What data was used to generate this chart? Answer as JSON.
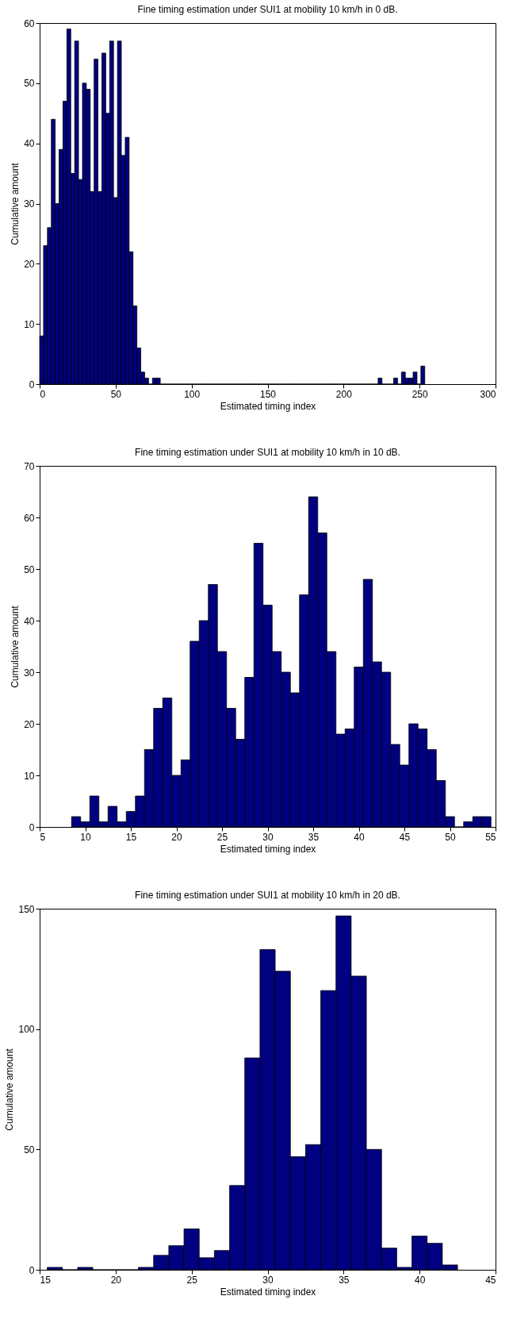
{
  "chart_data": [
    {
      "type": "histogram",
      "title": "Fine timing estimation under SUI1 at mobility 10 km/h in 0 dB.",
      "xlabel": "Estimated timing index",
      "ylabel": "Cumulative amount",
      "color": "#000080",
      "bins": [
        0,
        2.56,
        5.12,
        7.68,
        10.24,
        12.8,
        15.36,
        17.92,
        20.48,
        23.04,
        25.6,
        28.16,
        30.72,
        33.28,
        35.84,
        38.4,
        40.96,
        43.52,
        46.08,
        48.64,
        51.2,
        53.76,
        56.32,
        58.88,
        61.44,
        64,
        66.56,
        69.12,
        71.68,
        74.24,
        76.8,
        79.36,
        81.92,
        84.48,
        87.04,
        89.6,
        92.16,
        94.72,
        97.28,
        99.84,
        102.4,
        104.96,
        107.52,
        110.08,
        112.64,
        115.2,
        117.76,
        120.32,
        122.88,
        125.44,
        128,
        130.56,
        133.12,
        135.68,
        138.24,
        140.8,
        143.36,
        145.92,
        148.48,
        151.04,
        153.6,
        156.16,
        158.72,
        161.28,
        163.84,
        166.4,
        168.96,
        171.52,
        174.08,
        176.64,
        179.2,
        181.76,
        184.32,
        186.88,
        189.44,
        192,
        194.56,
        197.12,
        199.68,
        202.24,
        204.8,
        207.36,
        209.92,
        212.48,
        215.04,
        217.6,
        220.16,
        222.72,
        225.28,
        227.84,
        230.4,
        232.96,
        235.52,
        238.08,
        240.64,
        243.2,
        245.76,
        248.32,
        250.88,
        253.44
      ],
      "values": [
        8,
        23,
        26,
        44,
        30,
        39,
        47,
        59,
        35,
        57,
        34,
        50,
        49,
        32,
        54,
        32,
        55,
        45,
        57,
        31,
        57,
        38,
        41,
        22,
        13,
        6,
        2,
        1,
        0,
        1,
        1,
        0,
        0,
        0,
        0,
        0,
        0,
        0,
        0,
        0,
        0,
        0,
        0,
        0,
        0,
        0,
        0,
        0,
        0,
        0,
        0,
        0,
        0,
        0,
        0,
        0,
        0,
        0,
        0,
        0,
        0,
        0,
        0,
        0,
        0,
        0,
        0,
        0,
        0,
        0,
        0,
        0,
        0,
        0,
        0,
        0,
        0,
        0,
        0,
        0,
        0,
        0,
        0,
        0,
        0,
        0,
        0,
        1,
        0,
        0,
        0,
        1,
        0,
        2,
        1,
        1,
        2,
        0,
        3
      ],
      "xlim": [
        0,
        300
      ],
      "xticks": [
        0,
        50,
        100,
        150,
        200,
        250,
        300
      ],
      "ylim": [
        0,
        60
      ],
      "yticks": [
        0,
        10,
        20,
        30,
        40,
        50,
        60
      ]
    },
    {
      "type": "histogram",
      "title": "Fine timing estimation under SUI1 at mobility 10 km/h in 10 dB.",
      "xlabel": "Estimated timing index",
      "ylabel": "Cumulative amount",
      "color": "#000080",
      "bins": [
        8.5,
        9.5,
        10.5,
        11.5,
        12.5,
        13.5,
        14.5,
        15.5,
        16.5,
        17.5,
        18.5,
        19.5,
        20.5,
        21.5,
        22.5,
        23.5,
        24.5,
        25.5,
        26.5,
        27.5,
        28.5,
        29.5,
        30.5,
        31.5,
        32.5,
        33.5,
        34.5,
        35.5,
        36.5,
        37.5,
        38.5,
        39.5,
        40.5,
        41.5,
        42.5,
        43.5,
        44.5,
        45.5,
        46.5,
        47.5,
        48.5,
        49.5,
        50.5,
        51.5,
        52.5,
        53.5,
        54.5
      ],
      "values": [
        2,
        1,
        6,
        1,
        4,
        1,
        3,
        6,
        15,
        23,
        25,
        10,
        13,
        36,
        40,
        47,
        34,
        23,
        17,
        29,
        55,
        43,
        34,
        30,
        26,
        45,
        64,
        57,
        34,
        18,
        19,
        31,
        48,
        32,
        30,
        16,
        12,
        20,
        19,
        15,
        9,
        2,
        0,
        1,
        2,
        2
      ],
      "xlim": [
        5,
        55
      ],
      "xticks": [
        5,
        10,
        15,
        20,
        25,
        30,
        35,
        40,
        45,
        50,
        55
      ],
      "ylim": [
        0,
        70
      ],
      "yticks": [
        0,
        10,
        20,
        30,
        40,
        50,
        60,
        70
      ]
    },
    {
      "type": "histogram",
      "title": "Fine timing estimation under SUI1 at mobility 10 km/h in 20 dB.",
      "xlabel": "Estimated timing index",
      "ylabel": "Cumulative amount",
      "color": "#000080",
      "bins": [
        15.5,
        16.5,
        17.5,
        18.5,
        19.5,
        20.5,
        21.5,
        22.5,
        23.5,
        24.5,
        25.5,
        26.5,
        27.5,
        28.5,
        29.5,
        30.5,
        31.5,
        32.5,
        33.5,
        34.5,
        35.5,
        36.5,
        37.5,
        38.5,
        39.5,
        40.5,
        41.5,
        42.5
      ],
      "values": [
        1,
        0,
        1,
        0,
        0,
        0,
        1,
        6,
        10,
        17,
        5,
        8,
        35,
        88,
        133,
        124,
        47,
        52,
        116,
        147,
        122,
        50,
        9,
        1,
        14,
        11,
        2
      ],
      "xlim": [
        15,
        45
      ],
      "xticks": [
        15,
        20,
        25,
        30,
        35,
        40,
        45
      ],
      "ylim": [
        0,
        150
      ],
      "yticks": [
        0,
        50,
        100,
        150
      ]
    }
  ]
}
